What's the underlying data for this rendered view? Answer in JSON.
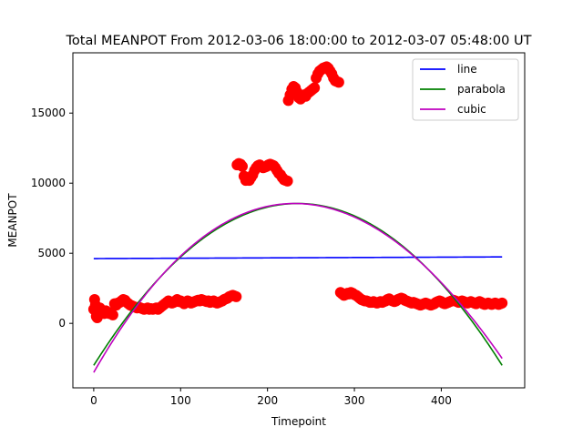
{
  "chart_data": {
    "type": "scatter",
    "title": "Total MEANPOT From 2012-03-06 18:00:00 to 2012-03-07 05:48:00 UT",
    "xlabel": "Timepoint",
    "ylabel": "MEANPOT",
    "xlim": [
      -24,
      496
    ],
    "ylim": [
      -4600,
      19300
    ],
    "xticks": [
      0,
      100,
      200,
      300,
      400
    ],
    "yticks": [
      0,
      5000,
      10000,
      15000
    ],
    "grid": false,
    "legend_position": "top-right",
    "scatter": {
      "color": "#ff0000",
      "points": [
        [
          0,
          1000
        ],
        [
          1,
          1700
        ],
        [
          2,
          1300
        ],
        [
          3,
          500
        ],
        [
          4,
          400
        ],
        [
          5,
          600
        ],
        [
          6,
          800
        ],
        [
          7,
          1100
        ],
        [
          8,
          900
        ],
        [
          10,
          800
        ],
        [
          12,
          700
        ],
        [
          14,
          900
        ],
        [
          16,
          800
        ],
        [
          18,
          700
        ],
        [
          20,
          750
        ],
        [
          22,
          600
        ],
        [
          24,
          1400
        ],
        [
          26,
          1300
        ],
        [
          28,
          1450
        ],
        [
          30,
          1500
        ],
        [
          32,
          1600
        ],
        [
          34,
          1700
        ],
        [
          36,
          1650
        ],
        [
          38,
          1500
        ],
        [
          40,
          1400
        ],
        [
          42,
          1300
        ],
        [
          44,
          1250
        ],
        [
          46,
          1200
        ],
        [
          48,
          1150
        ],
        [
          50,
          1100
        ],
        [
          52,
          1150
        ],
        [
          54,
          1100
        ],
        [
          56,
          1050
        ],
        [
          58,
          1000
        ],
        [
          60,
          1050
        ],
        [
          62,
          1100
        ],
        [
          64,
          1000
        ],
        [
          66,
          1050
        ],
        [
          68,
          1000
        ],
        [
          70,
          1050
        ],
        [
          72,
          1100
        ],
        [
          74,
          1000
        ],
        [
          76,
          1100
        ],
        [
          78,
          1200
        ],
        [
          80,
          1300
        ],
        [
          82,
          1400
        ],
        [
          84,
          1500
        ],
        [
          86,
          1600
        ],
        [
          88,
          1500
        ],
        [
          90,
          1450
        ],
        [
          92,
          1500
        ],
        [
          94,
          1600
        ],
        [
          96,
          1700
        ],
        [
          98,
          1550
        ],
        [
          100,
          1600
        ],
        [
          102,
          1500
        ],
        [
          104,
          1400
        ],
        [
          106,
          1500
        ],
        [
          108,
          1600
        ],
        [
          110,
          1550
        ],
        [
          112,
          1450
        ],
        [
          114,
          1500
        ],
        [
          116,
          1550
        ],
        [
          118,
          1600
        ],
        [
          120,
          1650
        ],
        [
          122,
          1600
        ],
        [
          124,
          1700
        ],
        [
          126,
          1650
        ],
        [
          128,
          1600
        ],
        [
          130,
          1550
        ],
        [
          132,
          1600
        ],
        [
          134,
          1500
        ],
        [
          136,
          1550
        ],
        [
          138,
          1600
        ],
        [
          140,
          1500
        ],
        [
          142,
          1450
        ],
        [
          144,
          1500
        ],
        [
          146,
          1550
        ],
        [
          148,
          1600
        ],
        [
          150,
          1700
        ],
        [
          152,
          1750
        ],
        [
          154,
          1800
        ],
        [
          156,
          1900
        ],
        [
          158,
          1950
        ],
        [
          160,
          2000
        ],
        [
          162,
          1950
        ],
        [
          164,
          1900
        ],
        [
          165,
          11300
        ],
        [
          167,
          11400
        ],
        [
          169,
          11350
        ],
        [
          171,
          11200
        ],
        [
          173,
          10500
        ],
        [
          175,
          10200
        ],
        [
          177,
          10300
        ],
        [
          179,
          10200
        ],
        [
          181,
          10400
        ],
        [
          183,
          10600
        ],
        [
          185,
          10900
        ],
        [
          187,
          11100
        ],
        [
          189,
          11250
        ],
        [
          191,
          11300
        ],
        [
          193,
          11200
        ],
        [
          195,
          11100
        ],
        [
          197,
          11150
        ],
        [
          199,
          11200
        ],
        [
          201,
          11300
        ],
        [
          203,
          11350
        ],
        [
          205,
          11300
        ],
        [
          207,
          11250
        ],
        [
          209,
          11100
        ],
        [
          211,
          10900
        ],
        [
          213,
          10700
        ],
        [
          215,
          10600
        ],
        [
          217,
          10400
        ],
        [
          219,
          10250
        ],
        [
          221,
          10200
        ],
        [
          223,
          10150
        ],
        [
          224,
          15900
        ],
        [
          226,
          16300
        ],
        [
          228,
          16700
        ],
        [
          230,
          16900
        ],
        [
          232,
          16800
        ],
        [
          234,
          16500
        ],
        [
          236,
          16100
        ],
        [
          238,
          16000
        ],
        [
          240,
          16200
        ],
        [
          242,
          16300
        ],
        [
          244,
          16200
        ],
        [
          246,
          16400
        ],
        [
          248,
          16500
        ],
        [
          250,
          16600
        ],
        [
          252,
          16700
        ],
        [
          254,
          16800
        ],
        [
          256,
          17500
        ],
        [
          258,
          17800
        ],
        [
          260,
          18000
        ],
        [
          262,
          18100
        ],
        [
          264,
          18200
        ],
        [
          266,
          18250
        ],
        [
          268,
          18300
        ],
        [
          270,
          18200
        ],
        [
          272,
          18000
        ],
        [
          274,
          17800
        ],
        [
          276,
          17500
        ],
        [
          278,
          17300
        ],
        [
          280,
          17250
        ],
        [
          282,
          17200
        ],
        [
          284,
          2200
        ],
        [
          286,
          2100
        ],
        [
          288,
          2000
        ],
        [
          290,
          2050
        ],
        [
          292,
          2150
        ],
        [
          294,
          2100
        ],
        [
          296,
          2200
        ],
        [
          298,
          2150
        ],
        [
          300,
          2050
        ],
        [
          302,
          2000
        ],
        [
          304,
          1900
        ],
        [
          306,
          1800
        ],
        [
          308,
          1700
        ],
        [
          310,
          1650
        ],
        [
          312,
          1600
        ],
        [
          314,
          1600
        ],
        [
          316,
          1550
        ],
        [
          318,
          1500
        ],
        [
          320,
          1500
        ],
        [
          322,
          1550
        ],
        [
          324,
          1500
        ],
        [
          326,
          1450
        ],
        [
          328,
          1500
        ],
        [
          330,
          1550
        ],
        [
          332,
          1500
        ],
        [
          334,
          1550
        ],
        [
          336,
          1600
        ],
        [
          338,
          1700
        ],
        [
          340,
          1750
        ],
        [
          342,
          1650
        ],
        [
          344,
          1600
        ],
        [
          346,
          1550
        ],
        [
          348,
          1600
        ],
        [
          350,
          1700
        ],
        [
          352,
          1750
        ],
        [
          354,
          1800
        ],
        [
          356,
          1750
        ],
        [
          358,
          1650
        ],
        [
          360,
          1600
        ],
        [
          362,
          1550
        ],
        [
          364,
          1500
        ],
        [
          366,
          1450
        ],
        [
          368,
          1500
        ],
        [
          370,
          1450
        ],
        [
          372,
          1400
        ],
        [
          374,
          1350
        ],
        [
          376,
          1300
        ],
        [
          378,
          1350
        ],
        [
          380,
          1400
        ],
        [
          382,
          1450
        ],
        [
          384,
          1400
        ],
        [
          386,
          1350
        ],
        [
          388,
          1300
        ],
        [
          390,
          1350
        ],
        [
          392,
          1400
        ],
        [
          394,
          1500
        ],
        [
          396,
          1550
        ],
        [
          398,
          1600
        ],
        [
          400,
          1550
        ],
        [
          402,
          1450
        ],
        [
          404,
          1400
        ],
        [
          406,
          1450
        ],
        [
          408,
          1500
        ],
        [
          410,
          1550
        ],
        [
          412,
          1600
        ],
        [
          414,
          1650
        ],
        [
          416,
          1600
        ],
        [
          418,
          1550
        ],
        [
          420,
          1500
        ],
        [
          422,
          1550
        ],
        [
          424,
          1600
        ],
        [
          426,
          1550
        ],
        [
          428,
          1500
        ],
        [
          430,
          1450
        ],
        [
          432,
          1500
        ],
        [
          434,
          1550
        ],
        [
          436,
          1500
        ],
        [
          438,
          1450
        ],
        [
          440,
          1400
        ],
        [
          442,
          1500
        ],
        [
          444,
          1550
        ],
        [
          446,
          1500
        ],
        [
          448,
          1400
        ],
        [
          450,
          1350
        ],
        [
          452,
          1400
        ],
        [
          454,
          1450
        ],
        [
          456,
          1400
        ],
        [
          458,
          1350
        ],
        [
          460,
          1400
        ],
        [
          462,
          1450
        ],
        [
          464,
          1400
        ],
        [
          466,
          1350
        ],
        [
          468,
          1400
        ],
        [
          470,
          1450
        ]
      ]
    },
    "series": [
      {
        "name": "line",
        "color": "#0000ff",
        "kind": "line",
        "x_range": [
          0,
          470
        ],
        "values_at_ends": [
          4620,
          4740
        ]
      },
      {
        "name": "parabola",
        "color": "#008000",
        "kind": "parabola",
        "vertex": [
          235,
          8550
        ],
        "points": [
          [
            0,
            -3000
          ],
          [
            470,
            -3000
          ]
        ]
      },
      {
        "name": "cubic",
        "color": "#bf00bf",
        "kind": "cubic",
        "points": [
          [
            0,
            -3500
          ],
          [
            100,
            4800
          ],
          [
            233,
            8550
          ],
          [
            370,
            4700
          ],
          [
            470,
            -2500
          ]
        ]
      }
    ]
  }
}
